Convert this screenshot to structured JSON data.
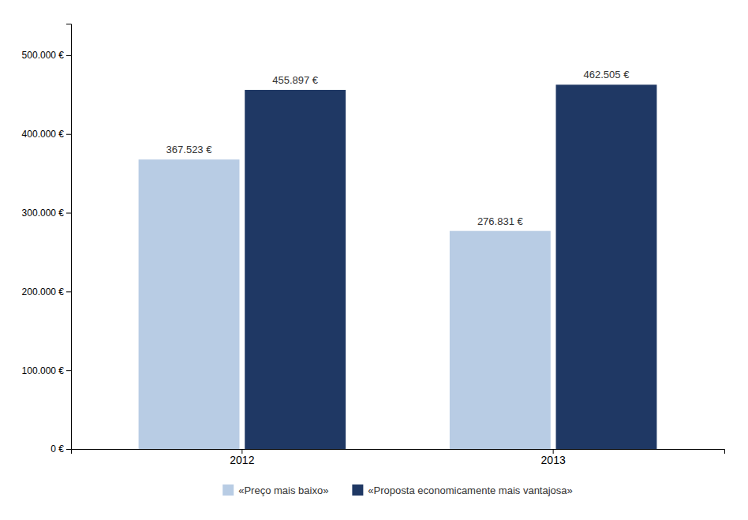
{
  "chart_data": {
    "type": "bar",
    "categories": [
      "2012",
      "2013"
    ],
    "series": [
      {
        "name": "«Preço mais baixo»",
        "color": "#b8cce4",
        "values": [
          367523,
          276831
        ],
        "value_labels": [
          "367.523 €",
          "276.831 €"
        ]
      },
      {
        "name": "«Proposta economicamente mais vantajosa»",
        "color": "#1f3864",
        "values": [
          455897,
          462505
        ],
        "value_labels": [
          "455.897 €",
          "462.505 €"
        ]
      }
    ],
    "ylim": [
      0,
      540000
    ],
    "yticks": [
      {
        "value": 0,
        "label": "0 €"
      },
      {
        "value": 100000,
        "label": "100.000 €"
      },
      {
        "value": 200000,
        "label": "200.000 €"
      },
      {
        "value": 300000,
        "label": "300.000 €"
      },
      {
        "value": 400000,
        "label": "400.000 €"
      },
      {
        "value": 500000,
        "label": "500.000 €"
      }
    ],
    "grid": false,
    "data_labels": true,
    "legend": "bottom"
  }
}
